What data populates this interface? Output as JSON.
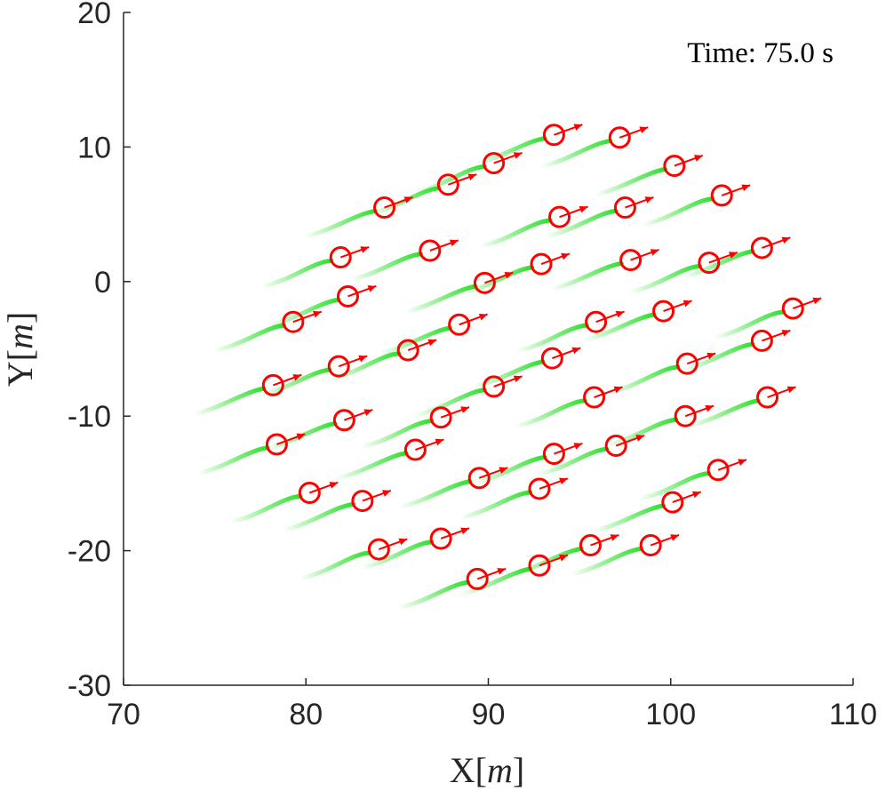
{
  "chart_data": {
    "type": "scatter",
    "x_axis": {
      "label_main": "X",
      "label_unit": "m",
      "lim": [
        70,
        110
      ],
      "ticks": [
        70,
        80,
        90,
        100,
        110
      ]
    },
    "y_axis": {
      "label_main": "Y",
      "label_unit": "m",
      "lim": [
        -30,
        20
      ],
      "ticks": [
        20,
        10,
        0,
        -10,
        -20,
        -30
      ]
    },
    "annotation": {
      "text": "Time: 75.0 s"
    },
    "grid": false,
    "colors": {
      "marker": "#ff0000",
      "trail": "#22dd22",
      "axis": "#262626"
    },
    "heading_deg": 20,
    "agents": [
      [
        93.6,
        10.9
      ],
      [
        97.2,
        10.7
      ],
      [
        90.3,
        8.8
      ],
      [
        100.2,
        8.6
      ],
      [
        87.8,
        7.2
      ],
      [
        102.8,
        6.4
      ],
      [
        84.3,
        5.5
      ],
      [
        97.5,
        5.5
      ],
      [
        93.9,
        4.8
      ],
      [
        105.0,
        2.5
      ],
      [
        86.8,
        2.3
      ],
      [
        81.9,
        1.8
      ],
      [
        97.8,
        1.6
      ],
      [
        92.9,
        1.3
      ],
      [
        102.1,
        1.4
      ],
      [
        89.8,
        -0.1
      ],
      [
        82.3,
        -1.1
      ],
      [
        106.7,
        -2.0
      ],
      [
        99.6,
        -2.2
      ],
      [
        79.3,
        -3.0
      ],
      [
        95.9,
        -3.0
      ],
      [
        88.4,
        -3.2
      ],
      [
        105.0,
        -4.4
      ],
      [
        85.6,
        -5.1
      ],
      [
        93.5,
        -5.7
      ],
      [
        81.8,
        -6.3
      ],
      [
        100.9,
        -6.1
      ],
      [
        78.2,
        -7.7
      ],
      [
        90.3,
        -7.8
      ],
      [
        95.8,
        -8.6
      ],
      [
        105.3,
        -8.6
      ],
      [
        100.8,
        -10.0
      ],
      [
        87.4,
        -10.1
      ],
      [
        82.1,
        -10.3
      ],
      [
        78.4,
        -12.1
      ],
      [
        97.0,
        -12.2
      ],
      [
        86.0,
        -12.5
      ],
      [
        93.6,
        -12.8
      ],
      [
        102.6,
        -14.0
      ],
      [
        89.5,
        -14.6
      ],
      [
        92.8,
        -15.4
      ],
      [
        80.2,
        -15.7
      ],
      [
        100.1,
        -16.4
      ],
      [
        83.1,
        -16.3
      ],
      [
        87.4,
        -19.1
      ],
      [
        95.6,
        -19.6
      ],
      [
        98.9,
        -19.6
      ],
      [
        84.0,
        -19.9
      ],
      [
        92.8,
        -21.1
      ],
      [
        89.4,
        -22.1
      ]
    ]
  }
}
